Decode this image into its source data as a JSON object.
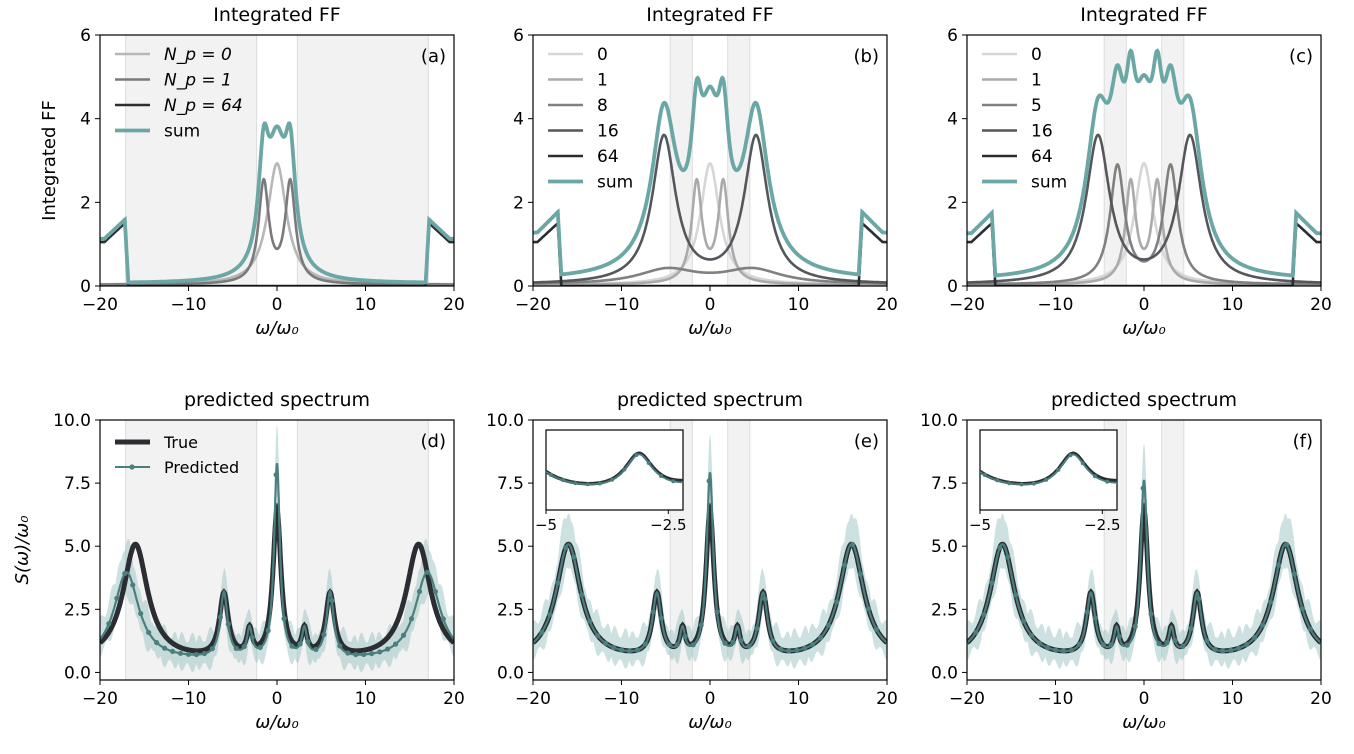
{
  "figure": {
    "colors": {
      "sum": "#6aa7a5",
      "true": "#2b2d33",
      "predicted": "#4b7f7d",
      "band": "#f2f2f2"
    }
  },
  "chart_data": [
    {
      "panel": "(a)",
      "type": "line",
      "title": "Integrated FF",
      "xlabel": "ω/ω₀",
      "ylabel": "Integrated FF",
      "xlim": [
        -20,
        20
      ],
      "ylim": [
        0,
        6
      ],
      "xticks": [
        -20,
        -10,
        0,
        10,
        20
      ],
      "yticks": [
        0,
        2,
        4,
        6
      ],
      "legend_position": "top-left",
      "shaded_regions": [
        [
          -17.1,
          -2.3
        ],
        [
          2.3,
          17.1
        ]
      ],
      "series": [
        {
          "name": "N_p = 0",
          "color": "#b7b7b7",
          "kind": "lor",
          "params": [
            [
              0,
              2.9,
              1.3
            ]
          ]
        },
        {
          "name": "N_p = 1",
          "color": "#7a7a7a",
          "kind": "lor",
          "params": [
            [
              -1.5,
              2.4,
              0.7
            ],
            [
              1.5,
              2.4,
              0.7
            ]
          ]
        },
        {
          "name": "N_p = 64",
          "color": "#2b2d33",
          "kind": "edge",
          "params": [
            17.2,
            1.5
          ]
        },
        {
          "name": "sum",
          "color": "#6aa7a5",
          "kind": "sum"
        }
      ]
    },
    {
      "panel": "(b)",
      "type": "line",
      "title": "Integrated FF",
      "xlabel": "ω/ω₀",
      "ylabel": "",
      "xlim": [
        -20,
        20
      ],
      "ylim": [
        0,
        6
      ],
      "xticks": [
        -20,
        -10,
        0,
        10,
        20
      ],
      "yticks": [
        0,
        2,
        4,
        6
      ],
      "legend_position": "top-left",
      "shaded_regions": [
        [
          -4.5,
          -2.0
        ],
        [
          2.0,
          4.5
        ]
      ],
      "series": [
        {
          "name": "0",
          "color": "#d6d6d6",
          "kind": "lor",
          "params": [
            [
              0,
              2.9,
              1.3
            ]
          ]
        },
        {
          "name": "1",
          "color": "#aaaaaa",
          "kind": "lor",
          "params": [
            [
              -1.5,
              2.4,
              0.7
            ],
            [
              1.5,
              2.4,
              0.7
            ]
          ]
        },
        {
          "name": "8",
          "color": "#808080",
          "kind": "lor",
          "params": [
            [
              -4.8,
              0.35,
              4
            ],
            [
              4.8,
              0.35,
              4
            ]
          ]
        },
        {
          "name": "16",
          "color": "#55575c",
          "kind": "lor",
          "params": [
            [
              -5.2,
              3.5,
              1.6
            ],
            [
              5.2,
              3.5,
              1.6
            ]
          ]
        },
        {
          "name": "64",
          "color": "#2b2d33",
          "kind": "edge",
          "params": [
            17.2,
            1.5
          ]
        },
        {
          "name": "sum",
          "color": "#6aa7a5",
          "kind": "sum"
        }
      ]
    },
    {
      "panel": "(c)",
      "type": "line",
      "title": "Integrated FF",
      "xlabel": "ω/ω₀",
      "ylabel": "",
      "xlim": [
        -20,
        20
      ],
      "ylim": [
        0,
        6
      ],
      "xticks": [
        -20,
        -10,
        0,
        10,
        20
      ],
      "yticks": [
        0,
        2,
        4,
        6
      ],
      "legend_position": "top-left",
      "shaded_regions": [
        [
          -4.5,
          -2.0
        ],
        [
          2.0,
          4.5
        ]
      ],
      "series": [
        {
          "name": "0",
          "color": "#d6d6d6",
          "kind": "lor",
          "params": [
            [
              0,
              2.9,
              1.3
            ]
          ]
        },
        {
          "name": "1",
          "color": "#aaaaaa",
          "kind": "lor",
          "params": [
            [
              -1.5,
              2.4,
              0.7
            ],
            [
              1.5,
              2.4,
              0.7
            ]
          ]
        },
        {
          "name": "5",
          "color": "#808080",
          "kind": "lor",
          "params": [
            [
              -3.0,
              2.8,
              1.0
            ],
            [
              3.0,
              2.8,
              1.0
            ]
          ]
        },
        {
          "name": "16",
          "color": "#55575c",
          "kind": "lor",
          "params": [
            [
              -5.2,
              3.5,
              1.6
            ],
            [
              5.2,
              3.5,
              1.6
            ]
          ]
        },
        {
          "name": "64",
          "color": "#2b2d33",
          "kind": "edge",
          "params": [
            17.2,
            1.5
          ]
        },
        {
          "name": "sum",
          "color": "#6aa7a5",
          "kind": "sum"
        }
      ]
    },
    {
      "panel": "(d)",
      "type": "line",
      "title": "predicted spectrum",
      "xlabel": "ω/ω₀",
      "ylabel": "S(ω)/ω₀",
      "xlim": [
        -20,
        20
      ],
      "ylim": [
        -0.3,
        10
      ],
      "xticks": [
        -20,
        -10,
        0,
        10,
        20
      ],
      "yticks": [
        0.0,
        2.5,
        5.0,
        7.5,
        10.0
      ],
      "legend_position": "top-left",
      "shaded_regions": [
        [
          -17.1,
          -2.3
        ],
        [
          2.3,
          17.1
        ]
      ],
      "true_peaks": [
        [
          -16,
          4.6,
          1.7
        ],
        [
          -6,
          2.5,
          0.6
        ],
        [
          -3.1,
          1.0,
          0.35
        ],
        [
          0,
          5.8,
          0.55
        ],
        [
          3.1,
          1.0,
          0.35
        ],
        [
          6,
          2.5,
          0.6
        ],
        [
          16,
          4.6,
          1.7
        ]
      ],
      "predicted_peaks": [
        [
          -17,
          3.5,
          1.7
        ],
        [
          -6,
          2.6,
          0.5
        ],
        [
          -3.1,
          1.1,
          0.35
        ],
        [
          0,
          7.7,
          0.4
        ],
        [
          3.1,
          1.1,
          0.35
        ],
        [
          6,
          2.6,
          0.5
        ],
        [
          17,
          3.5,
          1.7
        ]
      ],
      "series": [
        {
          "name": "True",
          "color": "#2b2d33"
        },
        {
          "name": "Predicted",
          "color": "#4b7f7d"
        }
      ],
      "inset": null
    },
    {
      "panel": "(e)",
      "type": "line",
      "title": "predicted spectrum",
      "xlabel": "ω/ω₀",
      "ylabel": "",
      "xlim": [
        -20,
        20
      ],
      "ylim": [
        -0.3,
        10
      ],
      "xticks": [
        -20,
        -10,
        0,
        10,
        20
      ],
      "yticks": [
        0.0,
        2.5,
        5.0,
        7.5,
        10.0
      ],
      "shaded_regions": [
        [
          -4.5,
          -2.0
        ],
        [
          2.0,
          4.5
        ]
      ],
      "true_peaks": [
        [
          -16,
          4.6,
          1.7
        ],
        [
          -6,
          2.5,
          0.6
        ],
        [
          -3.1,
          1.0,
          0.35
        ],
        [
          0,
          5.8,
          0.55
        ],
        [
          3.1,
          1.0,
          0.35
        ],
        [
          6,
          2.5,
          0.6
        ],
        [
          16,
          4.6,
          1.7
        ]
      ],
      "predicted_peaks": [
        [
          -16,
          4.6,
          1.7
        ],
        [
          -6,
          2.5,
          0.6
        ],
        [
          -3.1,
          1.0,
          0.35
        ],
        [
          0,
          7.3,
          0.45
        ],
        [
          3.1,
          1.0,
          0.35
        ],
        [
          6,
          2.5,
          0.6
        ],
        [
          16,
          4.6,
          1.7
        ]
      ],
      "series": [
        {
          "name": "True",
          "color": "#2b2d33"
        },
        {
          "name": "Predicted",
          "color": "#4b7f7d"
        }
      ],
      "inset": {
        "xlim": [
          -5.0,
          -2.2
        ],
        "xticks": [
          -5.0,
          -2.5
        ]
      }
    },
    {
      "panel": "(f)",
      "type": "line",
      "title": "predicted spectrum",
      "xlabel": "ω/ω₀",
      "ylabel": "",
      "xlim": [
        -20,
        20
      ],
      "ylim": [
        -0.3,
        10
      ],
      "xticks": [
        -20,
        -10,
        0,
        10,
        20
      ],
      "yticks": [
        0.0,
        2.5,
        5.0,
        7.5,
        10.0
      ],
      "shaded_regions": [
        [
          -4.5,
          -2.0
        ],
        [
          2.0,
          4.5
        ]
      ],
      "true_peaks": [
        [
          -16,
          4.6,
          1.7
        ],
        [
          -6,
          2.5,
          0.6
        ],
        [
          -3.1,
          1.0,
          0.35
        ],
        [
          0,
          5.8,
          0.55
        ],
        [
          3.1,
          1.0,
          0.35
        ],
        [
          6,
          2.5,
          0.6
        ],
        [
          16,
          4.6,
          1.7
        ]
      ],
      "predicted_peaks": [
        [
          -16,
          4.6,
          1.7
        ],
        [
          -6,
          2.5,
          0.6
        ],
        [
          -3.1,
          1.0,
          0.35
        ],
        [
          0,
          7.0,
          0.45
        ],
        [
          3.1,
          1.0,
          0.35
        ],
        [
          6,
          2.5,
          0.6
        ],
        [
          16,
          4.6,
          1.7
        ]
      ],
      "series": [
        {
          "name": "True",
          "color": "#2b2d33"
        },
        {
          "name": "Predicted",
          "color": "#4b7f7d"
        }
      ],
      "inset": {
        "xlim": [
          -5.0,
          -2.2
        ],
        "xticks": [
          -5.0,
          -2.5
        ]
      }
    }
  ]
}
